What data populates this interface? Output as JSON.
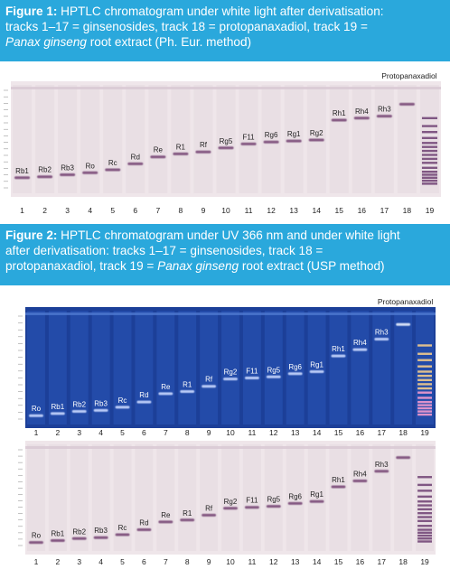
{
  "figure1": {
    "caption_label": "Figure 1:",
    "caption_line1": " HPTLC chromatogram under white light after derivatisation:",
    "caption_line2": "tracks 1–17 = ginsenosides, track 18 = protopanaxadiol, track 19 =",
    "caption_line3_italic": "Panax ginseng",
    "caption_line3_rest": " root extract (Ph. Eur. method)",
    "top_label": "Protopanaxadiol",
    "track_numbers": [
      "1",
      "2",
      "3",
      "4",
      "5",
      "6",
      "7",
      "8",
      "9",
      "10",
      "11",
      "12",
      "13",
      "14",
      "15",
      "16",
      "17",
      "18",
      "19"
    ],
    "band_labels": [
      "Rb1",
      "Rb2",
      "Rb3",
      "Ro",
      "Rc",
      "Rd",
      "Re",
      "R1",
      "Rf",
      "Rg5",
      "F11",
      "Rg6",
      "Rg1",
      "Rg2",
      "Rh1",
      "Rh4",
      "Rh3"
    ],
    "band_rf": [
      0.12,
      0.13,
      0.15,
      0.17,
      0.2,
      0.26,
      0.33,
      0.36,
      0.38,
      0.42,
      0.46,
      0.48,
      0.49,
      0.5,
      0.7,
      0.72,
      0.74,
      0.86
    ]
  },
  "figure2": {
    "caption_label": "Figure 2:",
    "caption_line1": " HPTLC chromatogram under UV 366 nm and under white light",
    "caption_line2": "after derivatisation: tracks 1–17 = ginsenosides, track 18 =",
    "caption_line3_pre": "protopanaxadiol, track 19 = ",
    "caption_line3_italic": "Panax ginseng",
    "caption_line3_rest": " root extract (USP method)",
    "top_label": "Protopanaxadiol",
    "uv_band_labels": [
      "Ro",
      "Rb1",
      "Rb2",
      "Rb3",
      "Rc",
      "Rd",
      "Re",
      "R1",
      "Rf",
      "Rg2",
      "F11",
      "Rg5",
      "Rg6",
      "Rg1",
      "Rh1",
      "Rh4",
      "Rh3"
    ],
    "wl_band_labels": [
      "Ro",
      "Rb1",
      "Rb2",
      "Rb3",
      "Rc",
      "Rd",
      "Re",
      "R1",
      "Rf",
      "Rg2",
      "F11",
      "Rg5",
      "Rg6",
      "Rg1",
      "Rh1",
      "Rh4",
      "Rh3"
    ],
    "track_numbers": [
      "1",
      "2",
      "3",
      "4",
      "5",
      "6",
      "7",
      "8",
      "9",
      "10",
      "11",
      "12",
      "13",
      "14",
      "15",
      "16",
      "17",
      "18",
      "19"
    ],
    "band_rf": [
      0.05,
      0.07,
      0.09,
      0.1,
      0.13,
      0.18,
      0.26,
      0.28,
      0.33,
      0.4,
      0.41,
      0.42,
      0.45,
      0.47,
      0.62,
      0.68,
      0.78,
      0.92
    ]
  },
  "colors": {
    "caption_bg": "#2aa8dc",
    "plate_white": "#efe6ea",
    "plate_uv": "#1c3f98",
    "band_purple": "#7a4a78"
  }
}
